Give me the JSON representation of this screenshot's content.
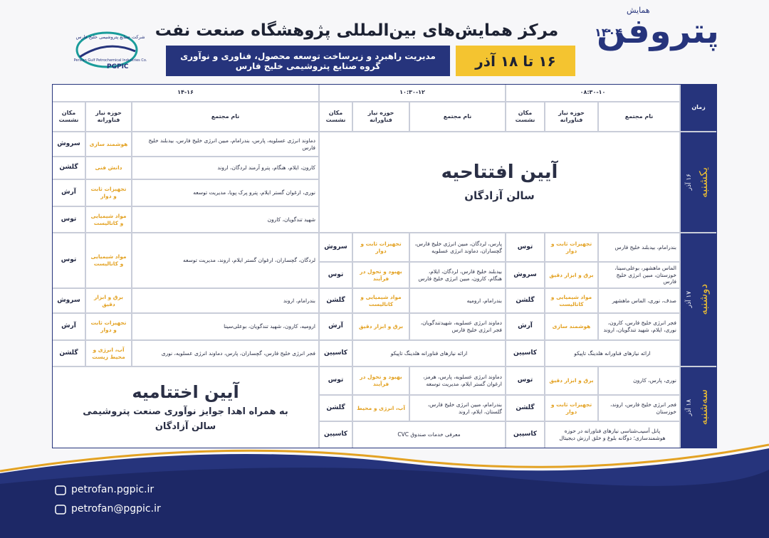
{
  "header": {
    "brand_small": "همایش",
    "brand": "پتروفن",
    "brand_year": "۱۴۰۴",
    "title": "مرکز همایش‌های بین‌المللی پژوهشگاه صنعت نفت",
    "subtitle_lines": [
      "مدیریت راهبرد و زیرساخت توسعه محصول، فناوری و نوآوری",
      "گروه صنایع پتروشیمی خلیج فارس"
    ],
    "dates": "۱۶ تا ۱۸ آذر",
    "company_fa": "شرکت صنایع پتروشیمی خلیج فارس",
    "company_en": "Persian Gulf Petrochemical Industries Co.",
    "company_short": "PGPIC"
  },
  "table": {
    "time_header": "زمان",
    "slots": [
      "۰۸:۳۰-۱۰",
      "۱۰:۳۰-۱۲",
      "۱۴-۱۶"
    ],
    "column_headers": [
      "نام مجتمع",
      "حوزه نیاز فناورانه",
      "مکان نشست"
    ],
    "days": [
      {
        "day": "یکشنبه",
        "date": "۱۶ آذر"
      },
      {
        "day": "دوشنبه",
        "date": "۱۷ آذر"
      },
      {
        "day": "سه‌شنبه",
        "date": "۱۸ آذر"
      }
    ],
    "opening": {
      "title": "آیین افتتاحیه",
      "hall": "سالن آزادگان"
    },
    "closing": {
      "title": "آیین اختتامیه",
      "subtitle": "به همراه اهدا جوایز نوآوری صنعت پتروشیمی",
      "hall": "سالن آزادگان"
    },
    "day1_slot3": [
      {
        "company": "دماوند انرژی عسلویه، پارس، بندرامام، مبین انرژی خلیج فارس، بیدبلند خلیج فارس",
        "field": "هوشمند سازی",
        "place": "سروش"
      },
      {
        "company": "کارون، ایلام، هنگام، پترو آرمند لردگان، اروند",
        "field": "دانش فنی",
        "place": "گلشن"
      },
      {
        "company": "نوری، ارغوان گستر ایلام، پترو پرک پویا، مدیریت توسعه",
        "field": "تجهیزات ثابت و دوار",
        "place": "آرش"
      },
      {
        "company": "شهید تندگویان، کارون",
        "field": "مواد شیمیایی و کاتالیست",
        "place": "توس"
      }
    ],
    "day2_slot1": [
      {
        "company": "بندرامام، بیدبلند خلیج فارس",
        "field": "تجهیزات ثابت و دوار",
        "place": "توس"
      },
      {
        "company": "الماس ماهشهر، بوعلی‌سینا، خوزستان، مبین انرژی خلیج فارس",
        "field": "برق و ابزار دقیق",
        "place": "سروش"
      },
      {
        "company": "صدف، نوری، الماس ماهشهر",
        "field": "مواد شیمیایی و کاتالیست",
        "place": "گلشن"
      },
      {
        "company": "فجر انرژی خلیج فارس، کارون، نوری، ایلام، شهید تندگویان، اروند",
        "field": "هوشمند سازی",
        "place": "آرش"
      },
      {
        "company": "ارائه نیازهای فناورانه هلدینگ تاپیکو",
        "place": "کاسپین"
      }
    ],
    "day2_slot2": [
      {
        "company": "پارس، لردگان، مبین انرژی خلیج فارس، گچساران، دماوند انرژی عسلویه",
        "field": "تجهیزات ثابت و دوار",
        "place": "سروش"
      },
      {
        "company": "بیدبلند خلیج فارس، لردگان، ایلام، هنگام، کارون، مبین انرژی خلیج فارس",
        "field": "بهبود و تحول در فرآیند",
        "place": "توس"
      },
      {
        "company": "بندرامام، ارومیه",
        "field": "مواد شیمیایی و کاتالیست",
        "place": "گلشن"
      },
      {
        "company": "دماوند انرژی عسلویه، شهیدتندگویان، فجر انرژی خلیج فارس",
        "field": "برق و ابزار دقیق",
        "place": "آرش"
      },
      {
        "company": "ارائه نیازهای فناورانه هلدینگ تاپیکو",
        "place": "کاسپین"
      }
    ],
    "day2_slot3": [
      {
        "company": "لردگان، گچساران، ارغوان گستر ایلام، اروند، مدیریت توسعه",
        "field": "مواد شیمیایی و کاتالیست",
        "place": "توس"
      },
      {
        "company": "بندرامام، اروند",
        "field": "برق و ابزار دقیق",
        "place": "سروش"
      },
      {
        "company": "ارومیه، کارون، شهید تندگویان، بوعلی‌سینا",
        "field": "تجهیزات ثابت و دوار",
        "place": "آرش"
      },
      {
        "company": "فجر انرژی خلیج فارس، گچساران، پارس، دماوند انرژی عسلویه، نوری",
        "field": "آب، انرژی و محیط زیست",
        "place": "گلشن"
      }
    ],
    "day3_slot1": [
      {
        "company": "نوری، پارس، کارون",
        "field": "برق و ابزار دقیق",
        "place": "توس"
      },
      {
        "company": "فجر انرژی خلیج فارس، اروند، خوزستان",
        "field": "تجهیزات ثابت و دوار",
        "place": "گلشن"
      },
      {
        "company": "پانل آسیب‌شناسی نیازهای فناورانه در حوزه هوشمندسازی؛ دوگانه بلوغ و خلق ارزش دیجیتال",
        "place": "کاسپین"
      }
    ],
    "day3_slot2": [
      {
        "company": "دماوند انرژی عسلویه، پارس، هرمز، ارغوان گستر ایلام، مدیریت توسعه",
        "field": "بهبود و تحول در فرآیند",
        "place": "توس"
      },
      {
        "company": "بندرامام، مبین انرژی خلیج فارس، گلستان، ایلام، اروند",
        "field": "آب، انرژی و محیط",
        "place": "گلشن"
      },
      {
        "company": "معرفی خدمات صندوق CVC",
        "place": "کاسپین"
      }
    ]
  },
  "footer": {
    "website": "petrofan.pgpic.ir",
    "email": "petrofan@pgpic.ir"
  }
}
